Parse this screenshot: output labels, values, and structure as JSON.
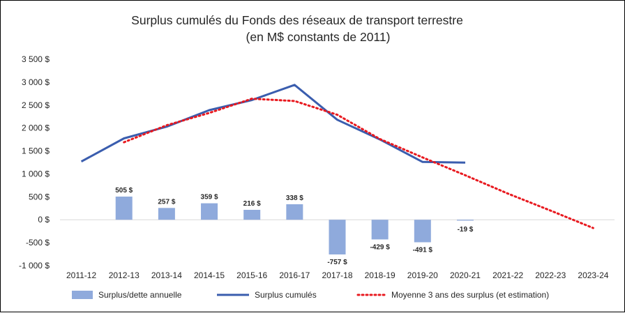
{
  "chart_data": {
    "type": "bar+line",
    "title": "Surplus cumulés du Fonds des réseaux de transport terrestre",
    "subtitle": "(en M$ constants de 2011)",
    "categories": [
      "2011-12",
      "2012-13",
      "2013-14",
      "2014-15",
      "2015-16",
      "2016-17",
      "2017-18",
      "2018-19",
      "2019-20",
      "2020-21",
      "2021-22",
      "2022-23",
      "2023-24"
    ],
    "yticks": [
      3500,
      3000,
      2500,
      2000,
      1500,
      1000,
      500,
      0,
      -500,
      -1000
    ],
    "ytick_labels": [
      "3 500 $",
      "3 000 $",
      "2 500 $",
      "2 000 $",
      "1 500 $",
      "1 000 $",
      "500 $",
      "0 $",
      "-500 $",
      "-1 000 $"
    ],
    "ylim": [
      -1000,
      3500
    ],
    "grid": false,
    "legend_position": "bottom",
    "series": [
      {
        "name": "Surplus/dette annuelle",
        "kind": "bar",
        "color": "#8FAADC",
        "values": [
          null,
          505,
          257,
          359,
          216,
          338,
          -757,
          -429,
          -491,
          -19,
          null,
          null,
          null
        ],
        "labels": [
          null,
          "505 $",
          "257 $",
          "359 $",
          "216 $",
          "338 $",
          "-757 $",
          "-429 $",
          "-491 $",
          "-19 $",
          null,
          null,
          null
        ]
      },
      {
        "name": "Surplus cumulés",
        "kind": "line",
        "color": "#3A5DAE",
        "values": [
          1270,
          1775,
          2030,
          2390,
          2610,
          2940,
          2180,
          1750,
          1260,
          1245,
          null,
          null,
          null
        ]
      },
      {
        "name": "Moyenne 3 ans des surplus (et estimation)",
        "kind": "dotted-line",
        "color": "#E8191F",
        "values": [
          null,
          1690,
          2060,
          2330,
          2640,
          2590,
          2290,
          1760,
          1360,
          970,
          570,
          200,
          -180
        ]
      }
    ]
  }
}
